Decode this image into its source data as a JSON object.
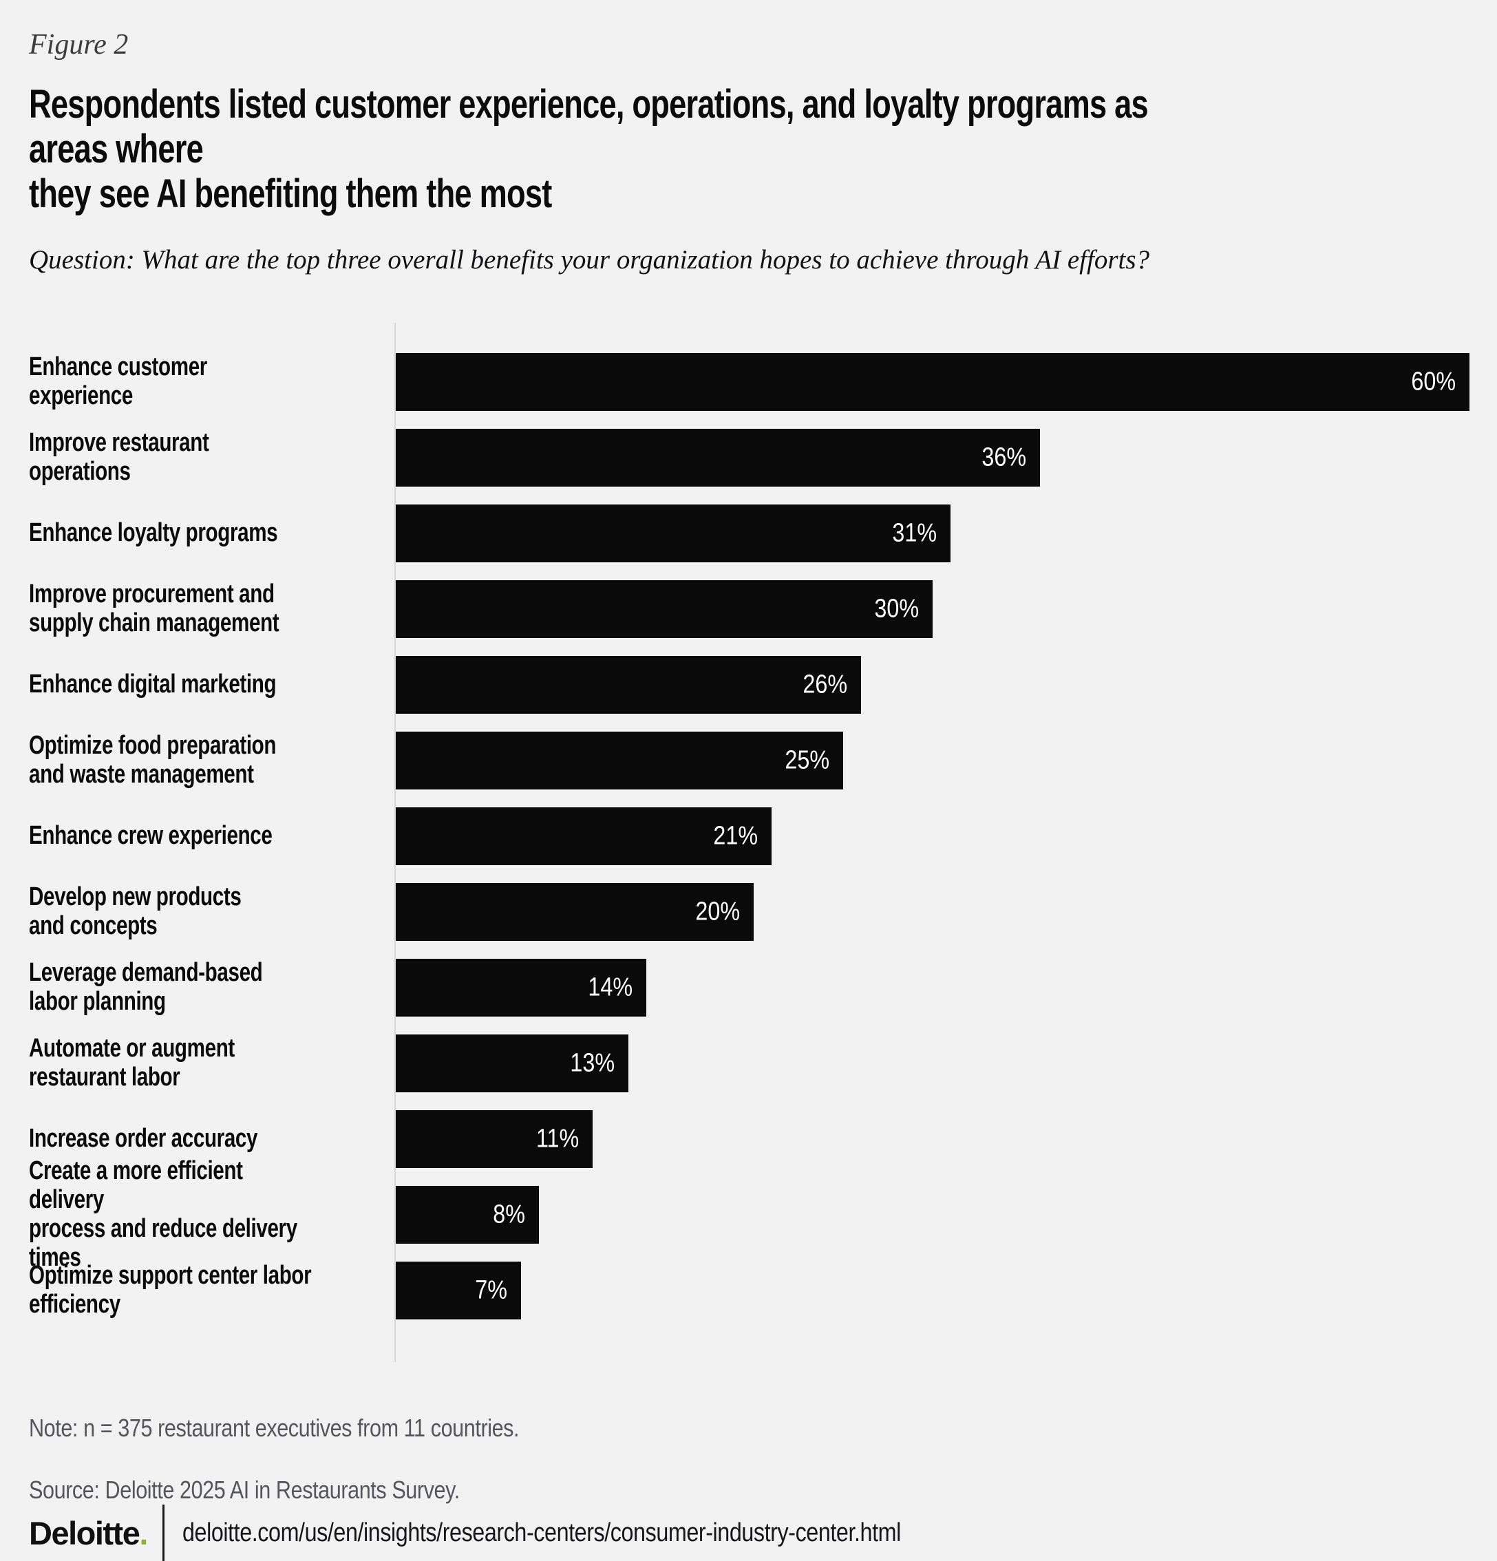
{
  "figure_label": "Figure 2",
  "title": "Respondents listed customer experience, operations, and loyalty programs as areas where\nthey see AI benefiting them the most",
  "question": "Question: What are the top three overall benefits your organization hopes to achieve through AI efforts?",
  "chart_data": {
    "type": "bar",
    "orientation": "horizontal",
    "unit": "percent",
    "categories": [
      "Enhance customer experience",
      "Improve restaurant operations",
      "Enhance loyalty programs",
      "Improve procurement and\nsupply chain management",
      "Enhance digital marketing",
      "Optimize food preparation\nand waste management",
      "Enhance crew experience",
      "Develop new products\nand concepts",
      "Leverage demand-based\nlabor planning",
      "Automate or augment\nrestaurant labor",
      "Increase order accuracy",
      "Create a more efficient delivery\nprocess and reduce delivery times",
      "Optimize support center labor\nefficiency"
    ],
    "values": [
      60,
      36,
      31,
      30,
      26,
      25,
      21,
      20,
      14,
      13,
      11,
      8,
      7
    ],
    "value_labels": [
      "60%",
      "36%",
      "31%",
      "30%",
      "26%",
      "25%",
      "21%",
      "20%",
      "14%",
      "13%",
      "11%",
      "8%",
      "7%"
    ],
    "xlim": [
      0,
      62
    ],
    "grid": false,
    "legend": "none",
    "bar_color": "#0a0a0b",
    "value_label_position": "inside-right"
  },
  "note": "Note: n = 375 restaurant executives from 11 countries.",
  "source": "Source: Deloitte 2025 AI in Restaurants Survey.",
  "footer": {
    "brand": "Deloitte",
    "brand_period": ".",
    "url": "deloitte.com/us/en/insights/research-centers/consumer-industry-center.html"
  },
  "colors": {
    "background": "#f2f2f2",
    "bar": "#0a0a0b",
    "bar_value_text": "#ffffff",
    "accent_green": "#86bc25",
    "muted_text": "#55565a",
    "axis_line": "#d8d8d9"
  }
}
